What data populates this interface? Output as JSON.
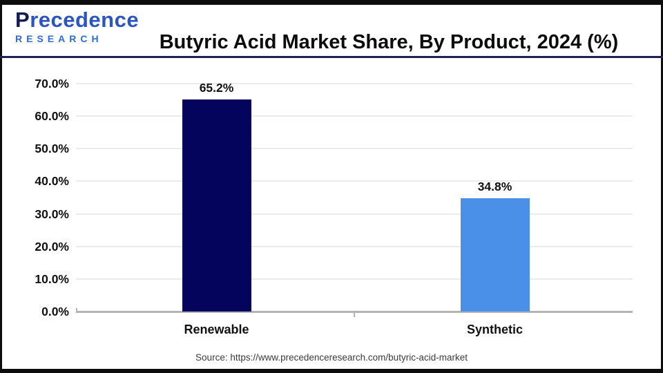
{
  "header": {
    "logo": {
      "name": "Precedence",
      "subtitle": "RESEARCH"
    },
    "title": "Butyric Acid Market Share, By Product, 2024 (%)"
  },
  "chart_data": {
    "type": "bar",
    "title": "Butyric Acid Market Share, By Product, 2024 (%)",
    "categories": [
      "Renewable",
      "Synthetic"
    ],
    "values": [
      65.2,
      34.8
    ],
    "value_labels": [
      "65.2%",
      "34.8%"
    ],
    "series_colors": [
      "#04045c",
      "#4a90e8"
    ],
    "ylim": [
      0,
      70
    ],
    "ytick_step": 10,
    "ytick_labels": [
      "0.0%",
      "10.0%",
      "20.0%",
      "30.0%",
      "40.0%",
      "50.0%",
      "60.0%",
      "70.0%"
    ],
    "grid": true,
    "legend": false,
    "xlabel": "",
    "ylabel": ""
  },
  "source": {
    "text": "Source: https://www.precedenceresearch.com/butyric-acid-market"
  },
  "colors": {
    "bar_renewable": "#04045c",
    "bar_synthetic": "#4a90e8",
    "axis_line": "#b3b3b3",
    "gridline": "#ebebeb",
    "header_rule": "#1f1f52",
    "frame_edge": "#0d0d0d"
  }
}
